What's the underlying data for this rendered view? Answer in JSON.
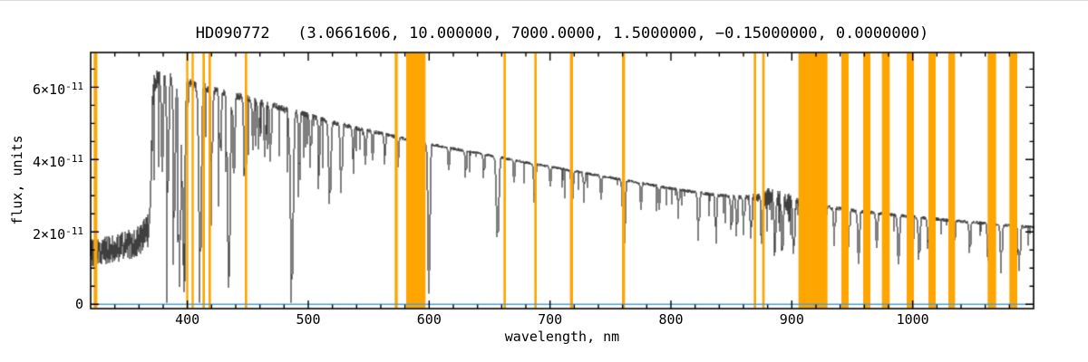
{
  "chart_data": {
    "type": "line",
    "title": "HD090772   (3.0661606, 10.000000, 7000.0000, 1.5000000, −0.15000000, 0.0000000)",
    "xlabel": "wavelength, nm",
    "ylabel": "flux, units",
    "x_range_nm": [
      320,
      1100
    ],
    "y_range_flux_e11": [
      -0.12,
      6.96
    ],
    "flux_unit_scale": "1e-11",
    "x_ticks_nm": [
      400,
      500,
      600,
      700,
      800,
      900,
      1000
    ],
    "y_ticks": [
      {
        "value_e11": 0,
        "label": "0"
      },
      {
        "value_e11": 2,
        "label": "2×10^-11"
      },
      {
        "value_e11": 4,
        "label": "4×10^-11"
      },
      {
        "value_e11": 6,
        "label": "6×10^-11"
      }
    ],
    "grid": false,
    "legend": "none",
    "series": [
      {
        "name": "observed-spectrum",
        "color": "#000000",
        "continuum_e11": [
          [
            320,
            1.42
          ],
          [
            340,
            1.55
          ],
          [
            355,
            1.68
          ],
          [
            366,
            1.95
          ],
          [
            368,
            2.05
          ],
          [
            369.5,
            3.2
          ],
          [
            371,
            5.6
          ],
          [
            372.5,
            6.15
          ],
          [
            376,
            6.28
          ],
          [
            382,
            6.3
          ],
          [
            390,
            6.22
          ],
          [
            400,
            6.1
          ],
          [
            415,
            5.98
          ],
          [
            430,
            5.85
          ],
          [
            450,
            5.68
          ],
          [
            470,
            5.5
          ],
          [
            490,
            5.32
          ],
          [
            510,
            5.12
          ],
          [
            530,
            4.95
          ],
          [
            560,
            4.72
          ],
          [
            590,
            4.5
          ],
          [
            620,
            4.3
          ],
          [
            650,
            4.12
          ],
          [
            680,
            3.92
          ],
          [
            710,
            3.74
          ],
          [
            740,
            3.56
          ],
          [
            770,
            3.38
          ],
          [
            800,
            3.2
          ],
          [
            830,
            3.05
          ],
          [
            850,
            2.98
          ],
          [
            870,
            2.95
          ],
          [
            880,
            2.92
          ],
          [
            900,
            2.82
          ],
          [
            920,
            2.72
          ],
          [
            940,
            2.64
          ],
          [
            960,
            2.56
          ],
          [
            980,
            2.48
          ],
          [
            1000,
            2.42
          ],
          [
            1030,
            2.32
          ],
          [
            1060,
            2.24
          ],
          [
            1100,
            2.12
          ]
        ],
        "noise_amplitude_e11": [
          [
            320,
            0.38
          ],
          [
            355,
            0.42
          ],
          [
            365,
            0.48
          ],
          [
            370,
            0.5
          ],
          [
            374,
            0.25
          ],
          [
            385,
            0.18
          ],
          [
            420,
            0.12
          ],
          [
            500,
            0.08
          ],
          [
            600,
            0.05
          ],
          [
            700,
            0.04
          ],
          [
            820,
            0.05
          ],
          [
            860,
            0.06
          ],
          [
            872,
            0.14
          ],
          [
            878,
            0.3
          ],
          [
            888,
            0.32
          ],
          [
            898,
            0.3
          ],
          [
            904,
            0.2
          ],
          [
            910,
            0.08
          ],
          [
            940,
            0.06
          ],
          [
            1000,
            0.05
          ],
          [
            1100,
            0.05
          ]
        ],
        "absorption_lines": [
          [
            379,
            2.6,
            0.7
          ],
          [
            383.5,
            3.2,
            0.8
          ],
          [
            388.9,
            3.8,
            0.8
          ],
          [
            393.4,
            5.6,
            0.9
          ],
          [
            396.8,
            5.2,
            0.9
          ],
          [
            410.2,
            5.3,
            1.0
          ],
          [
            420,
            2.0,
            0.7
          ],
          [
            427,
            1.6,
            0.7
          ],
          [
            434,
            5.3,
            1.0
          ],
          [
            438.3,
            2.2,
            0.7
          ],
          [
            447.1,
            2.4,
            0.7
          ],
          [
            454,
            1.4,
            0.6
          ],
          [
            458.7,
            1.3,
            0.6
          ],
          [
            464,
            1.4,
            0.6
          ],
          [
            468.6,
            1.5,
            0.6
          ],
          [
            486.1,
            4.9,
            1.1
          ],
          [
            492.2,
            1.6,
            0.6
          ],
          [
            501.6,
            1.4,
            0.6
          ],
          [
            508.7,
            1.2,
            0.6
          ],
          [
            517.5,
            2.3,
            0.9
          ],
          [
            527,
            1.9,
            0.8
          ],
          [
            537,
            0.9,
            0.6
          ],
          [
            547,
            1.0,
            0.6
          ],
          [
            553,
            0.9,
            0.5
          ],
          [
            563,
            0.8,
            0.5
          ],
          [
            574,
            0.9,
            0.5
          ],
          [
            588,
            1.2,
            0.6
          ],
          [
            599.5,
            4.25,
            0.8
          ],
          [
            616,
            0.7,
            0.5
          ],
          [
            630,
            0.8,
            0.5
          ],
          [
            645,
            0.7,
            0.5
          ],
          [
            656.3,
            2.3,
            1.0
          ],
          [
            670,
            0.7,
            0.5
          ],
          [
            687,
            1.1,
            0.7
          ],
          [
            700,
            0.6,
            0.5
          ],
          [
            718,
            1.0,
            0.7
          ],
          [
            728,
            0.8,
            0.5
          ],
          [
            742,
            0.7,
            0.5
          ],
          [
            760.8,
            2.1,
            0.9
          ],
          [
            775,
            0.8,
            0.5
          ],
          [
            790,
            0.7,
            0.5
          ],
          [
            806,
            0.8,
            0.5
          ],
          [
            822.5,
            1.3,
            0.7
          ],
          [
            837,
            0.9,
            0.6
          ],
          [
            849.8,
            1.0,
            0.6
          ],
          [
            854.2,
            1.1,
            0.6
          ],
          [
            860,
            1.0,
            0.6
          ],
          [
            866.2,
            1.1,
            0.6
          ],
          [
            875,
            1.2,
            0.6
          ],
          [
            886,
            1.3,
            0.7
          ],
          [
            892,
            1.4,
            0.7
          ],
          [
            901.5,
            1.3,
            0.7
          ],
          [
            923,
            1.2,
            0.7
          ],
          [
            935,
            1.0,
            0.6
          ],
          [
            947,
            1.0,
            0.6
          ],
          [
            955,
            1.5,
            0.7
          ],
          [
            970,
            1.0,
            0.6
          ],
          [
            988,
            1.4,
            0.7
          ],
          [
            1005,
            1.2,
            0.7
          ],
          [
            1012.5,
            0.9,
            0.6
          ],
          [
            1034,
            1.1,
            0.6
          ],
          [
            1047,
            0.9,
            0.6
          ],
          [
            1062,
            1.0,
            0.6
          ],
          [
            1073,
            1.3,
            0.7
          ],
          [
            1088,
            1.2,
            0.7
          ]
        ],
        "line_forests": [
          {
            "range_nm": [
              371,
              386
            ],
            "density": 0.55,
            "max_depth_e11": 4.3
          },
          {
            "range_nm": [
              386,
              400
            ],
            "density": 0.38,
            "max_depth_e11": 3.6
          },
          {
            "range_nm": [
              400,
              470
            ],
            "density": 0.3,
            "max_depth_e11": 3.4
          },
          {
            "range_nm": [
              470,
              520
            ],
            "density": 0.18,
            "max_depth_e11": 1.7
          },
          {
            "range_nm": [
              520,
              600
            ],
            "density": 0.1,
            "max_depth_e11": 1.2
          },
          {
            "range_nm": [
              600,
              835
            ],
            "density": 0.06,
            "max_depth_e11": 0.8
          },
          {
            "range_nm": [
              835,
              872
            ],
            "density": 0.12,
            "max_depth_e11": 0.9
          },
          {
            "range_nm": [
              872,
              906
            ],
            "density": 0.5,
            "max_depth_e11": 1.0
          },
          {
            "range_nm": [
              906,
              1100
            ],
            "density": 0.08,
            "max_depth_e11": 0.7
          }
        ]
      },
      {
        "name": "zero-baseline",
        "color": "#4aa2d9",
        "value_e11": 0
      }
    ],
    "masked_regions": {
      "name": "masked-wavelength-bands",
      "color": "#FFA500",
      "ranges_nm": [
        [
          322.5,
          325.5
        ],
        [
          399,
          400.8
        ],
        [
          403.5,
          405.3
        ],
        [
          412.5,
          414.5
        ],
        [
          417.5,
          419.5
        ],
        [
          447.5,
          449.5
        ],
        [
          571.5,
          574
        ],
        [
          581,
          597
        ],
        [
          661.5,
          663.5
        ],
        [
          687,
          689
        ],
        [
          716.5,
          719
        ],
        [
          759.5,
          762
        ],
        [
          868.5,
          870.5
        ],
        [
          875.5,
          877.5
        ],
        [
          905.5,
          929.5
        ],
        [
          941,
          947
        ],
        [
          959,
          965
        ],
        [
          974.5,
          981
        ],
        [
          995,
          1001
        ],
        [
          1013,
          1019
        ],
        [
          1029.5,
          1035
        ],
        [
          1062,
          1069
        ],
        [
          1080,
          1086.5
        ]
      ]
    }
  }
}
